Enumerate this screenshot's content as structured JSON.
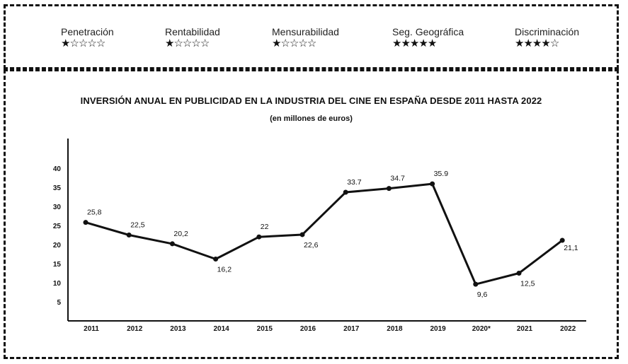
{
  "criteria": [
    {
      "label": "Penetración",
      "rating": 1,
      "max": 5
    },
    {
      "label": "Rentabilidad",
      "rating": 1,
      "max": 5
    },
    {
      "label": "Mensurabilidad",
      "rating": 1,
      "max": 5
    },
    {
      "label": "Seg. Geográfica",
      "rating": 5,
      "max": 5
    },
    {
      "label": "Discriminación",
      "rating": 4,
      "max": 5
    }
  ],
  "chart_data": {
    "type": "line",
    "title": "INVERSIÓN ANUAL EN PUBLICIDAD EN LA INDUSTRIA DEL CINE EN ESPAÑA DESDE 2011 HASTA 2022",
    "subtitle": "(en millones de euros)",
    "categories": [
      "2011",
      "2012",
      "2013",
      "2014",
      "2015",
      "2016",
      "2017",
      "2018",
      "2019",
      "2020*",
      "2021",
      "2022"
    ],
    "series": [
      {
        "values": [
          25.8,
          22.5,
          20.2,
          16.2,
          22,
          22.6,
          33.7,
          34.7,
          35.9,
          9.6,
          12.5,
          21.1
        ],
        "labels": [
          "25,8",
          "22,5",
          "20,2",
          "16,2",
          "22",
          "22,6",
          "33.7",
          "34.7",
          "35.9",
          "9,6",
          "12,5",
          "21,1"
        ],
        "color": "#111111"
      }
    ],
    "yticks": [
      5,
      10,
      15,
      20,
      25,
      30,
      35,
      40
    ],
    "grid": false,
    "legend": "none"
  }
}
